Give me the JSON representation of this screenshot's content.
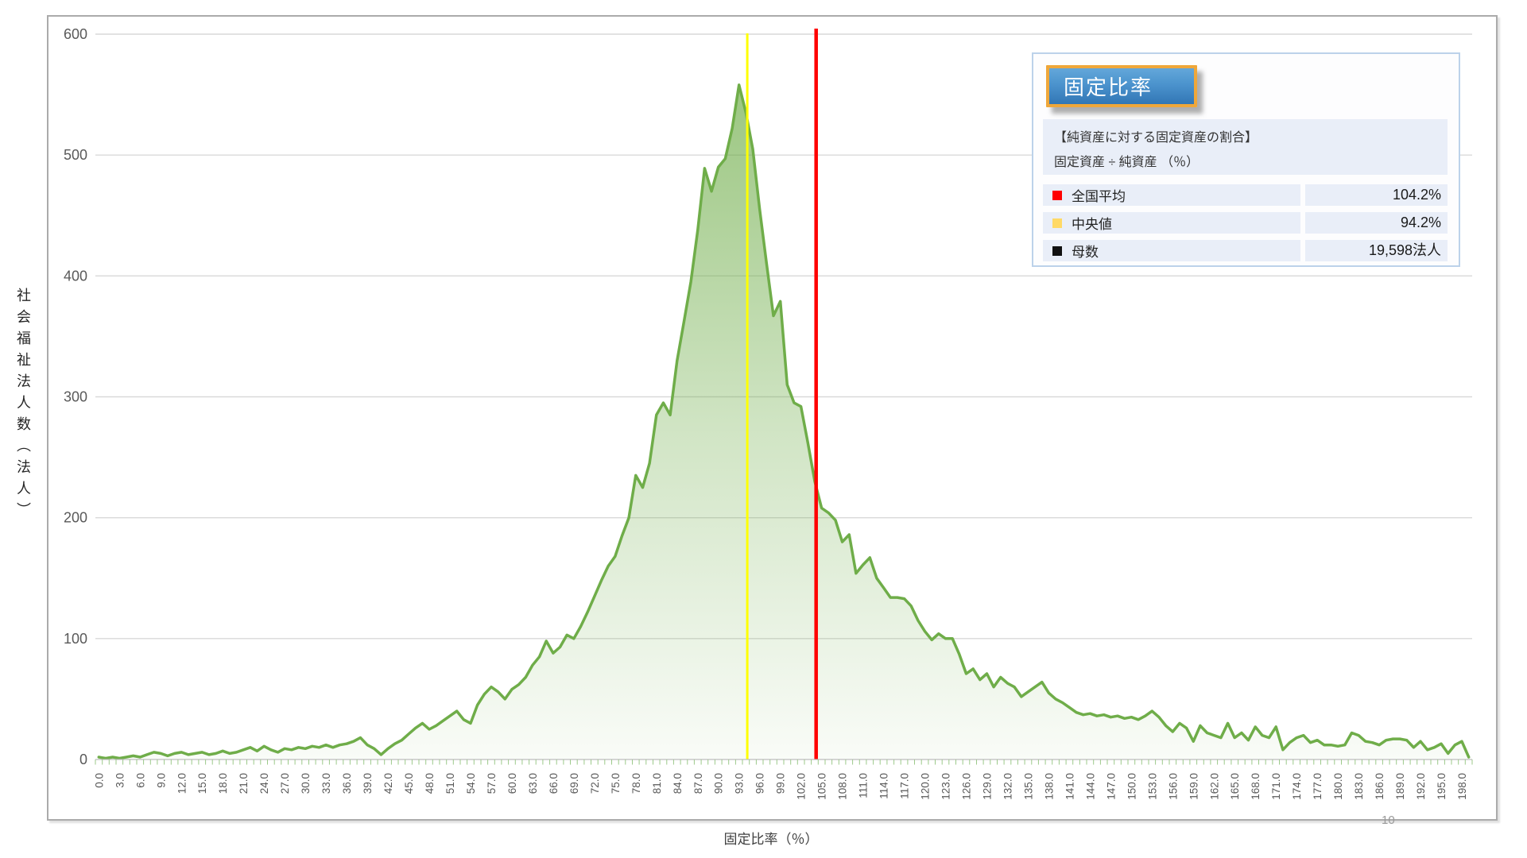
{
  "page": {
    "number": "10"
  },
  "y_axis": {
    "title": "社会福祉法人数（法人）",
    "tick_labels": [
      "0",
      "100",
      "200",
      "300",
      "400",
      "500",
      "600"
    ]
  },
  "x_axis": {
    "title": "固定比率（％）",
    "tick_labels": [
      "0.0",
      "3.0",
      "6.0",
      "9.0",
      "12.0",
      "15.0",
      "18.0",
      "21.0",
      "24.0",
      "27.0",
      "30.0",
      "33.0",
      "36.0",
      "39.0",
      "42.0",
      "45.0",
      "48.0",
      "51.0",
      "54.0",
      "57.0",
      "60.0",
      "63.0",
      "66.0",
      "69.0",
      "72.0",
      "75.0",
      "78.0",
      "81.0",
      "84.0",
      "87.0",
      "90.0",
      "93.0",
      "96.0",
      "99.0",
      "102.0",
      "105.0",
      "108.0",
      "111.0",
      "114.0",
      "117.0",
      "120.0",
      "123.0",
      "126.0",
      "129.0",
      "132.0",
      "135.0",
      "138.0",
      "141.0",
      "144.0",
      "147.0",
      "150.0",
      "153.0",
      "156.0",
      "159.0",
      "162.0",
      "165.0",
      "168.0",
      "171.0",
      "174.0",
      "177.0",
      "180.0",
      "183.0",
      "186.0",
      "189.0",
      "192.0",
      "195.0",
      "198.0"
    ]
  },
  "info_panel": {
    "title": "固定比率",
    "description_line1": "【純資産に対する固定資産の割合】",
    "description_line2": "固定資産 ÷ 純資産 （％）",
    "rows": [
      {
        "label": "全国平均",
        "value": "104.2%",
        "marker_color": "#ff0000"
      },
      {
        "label": "中央値",
        "value": "94.2%",
        "marker_color": "#ffd966"
      },
      {
        "label": "母数",
        "value": "19,598法人",
        "marker_color": "#111111"
      }
    ]
  },
  "chart_data": {
    "type": "area",
    "title": "固定比率",
    "xlabel": "固定比率（％）",
    "ylabel": "社会福祉法人数（法人）",
    "x_start": 0.0,
    "x_step": 1.0,
    "xlim": [
      0,
      200
    ],
    "ylim": [
      0,
      600
    ],
    "grid": true,
    "legend_position": "top-right",
    "series": [
      {
        "name": "社会福祉法人数",
        "values": [
          2,
          1,
          2,
          1,
          2,
          3,
          2,
          4,
          6,
          5,
          3,
          5,
          6,
          4,
          5,
          6,
          4,
          5,
          7,
          5,
          6,
          8,
          10,
          7,
          11,
          8,
          6,
          9,
          8,
          10,
          9,
          11,
          10,
          12,
          10,
          12,
          13,
          15,
          18,
          12,
          9,
          4,
          9,
          13,
          16,
          21,
          26,
          30,
          25,
          28,
          32,
          36,
          40,
          33,
          30,
          45,
          54,
          60,
          56,
          50,
          58,
          62,
          68,
          78,
          85,
          98,
          88,
          93,
          103,
          100,
          110,
          122,
          135,
          148,
          160,
          168,
          185,
          200,
          235,
          225,
          245,
          285,
          295,
          285,
          330,
          362,
          395,
          438,
          489,
          470,
          490,
          497,
          522,
          558,
          535,
          505,
          455,
          410,
          367,
          379,
          310,
          295,
          292,
          262,
          230,
          208,
          204,
          198,
          180,
          186,
          154,
          161,
          167,
          150,
          142,
          134,
          134,
          133,
          127,
          115,
          106,
          99,
          104,
          100,
          100,
          87,
          71,
          75,
          66,
          71,
          60,
          68,
          63,
          60,
          52,
          56,
          60,
          64,
          55,
          50,
          47,
          43,
          39,
          37,
          38,
          36,
          37,
          35,
          36,
          34,
          35,
          33,
          36,
          40,
          35,
          28,
          23,
          30,
          26,
          15,
          28,
          22,
          20,
          18,
          30,
          18,
          22,
          16,
          27,
          20,
          18,
          27,
          8,
          14,
          18,
          20,
          14,
          16,
          12,
          12,
          11,
          12,
          22,
          20,
          15,
          14,
          12,
          16,
          17,
          17,
          16,
          10,
          15,
          8,
          10,
          13,
          5,
          12,
          15,
          2
        ]
      }
    ],
    "reference_lines": [
      {
        "label": "全国平均",
        "x": 104.2,
        "color": "#ff0000"
      },
      {
        "label": "中央値",
        "x": 94.2,
        "color": "#ffff00"
      }
    ],
    "statistics": {
      "mean": "104.2%",
      "median": "94.2%",
      "n": "19,598法人"
    },
    "colors": {
      "line": "#6fad49",
      "fill": "#6fad49",
      "gridline": "#d9d9d9",
      "axis": "#bdbdbd",
      "tick": "#9cc98a",
      "label": "#595959"
    }
  }
}
